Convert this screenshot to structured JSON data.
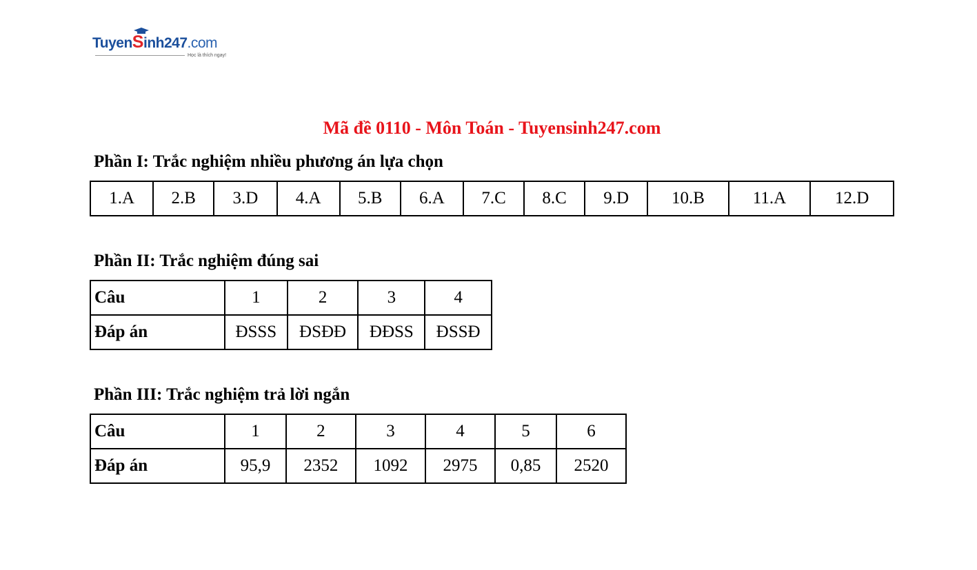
{
  "logo": {
    "text_main": "Tuyen",
    "text_s": "S",
    "text_rest": "inh247",
    "text_com": ".com",
    "tagline": "Học là thích ngay!",
    "brand_color": "#1b4f9c",
    "accent_color": "#e0262a"
  },
  "title": "Mã đề 0110 - Môn Toán - Tuyensinh247.com",
  "title_color": "#e8141b",
  "part1": {
    "heading": "Phần I: Trắc nghiệm nhiều phương án lựa chọn",
    "answers": [
      "1.A",
      "2.B",
      "3.D",
      "4.A",
      "5.B",
      "6.A",
      "7.C",
      "8.C",
      "9.D",
      "10.B",
      "11.A",
      "12.D"
    ]
  },
  "part2": {
    "heading": "Phần II: Trắc nghiệm đúng sai",
    "row_labels": [
      "Câu",
      "Đáp án"
    ],
    "questions": [
      "1",
      "2",
      "3",
      "4"
    ],
    "answers": [
      "ĐSSS",
      "ĐSĐĐ",
      "ĐĐSS",
      "ĐSSĐ"
    ]
  },
  "part3": {
    "heading": "Phần III: Trắc nghiệm trả lời ngắn",
    "row_labels": [
      "Câu",
      "Đáp án"
    ],
    "questions": [
      "1",
      "2",
      "3",
      "4",
      "5",
      "6"
    ],
    "answers": [
      "95,9",
      "2352",
      "1092",
      "2975",
      "0,85",
      "2520"
    ]
  }
}
